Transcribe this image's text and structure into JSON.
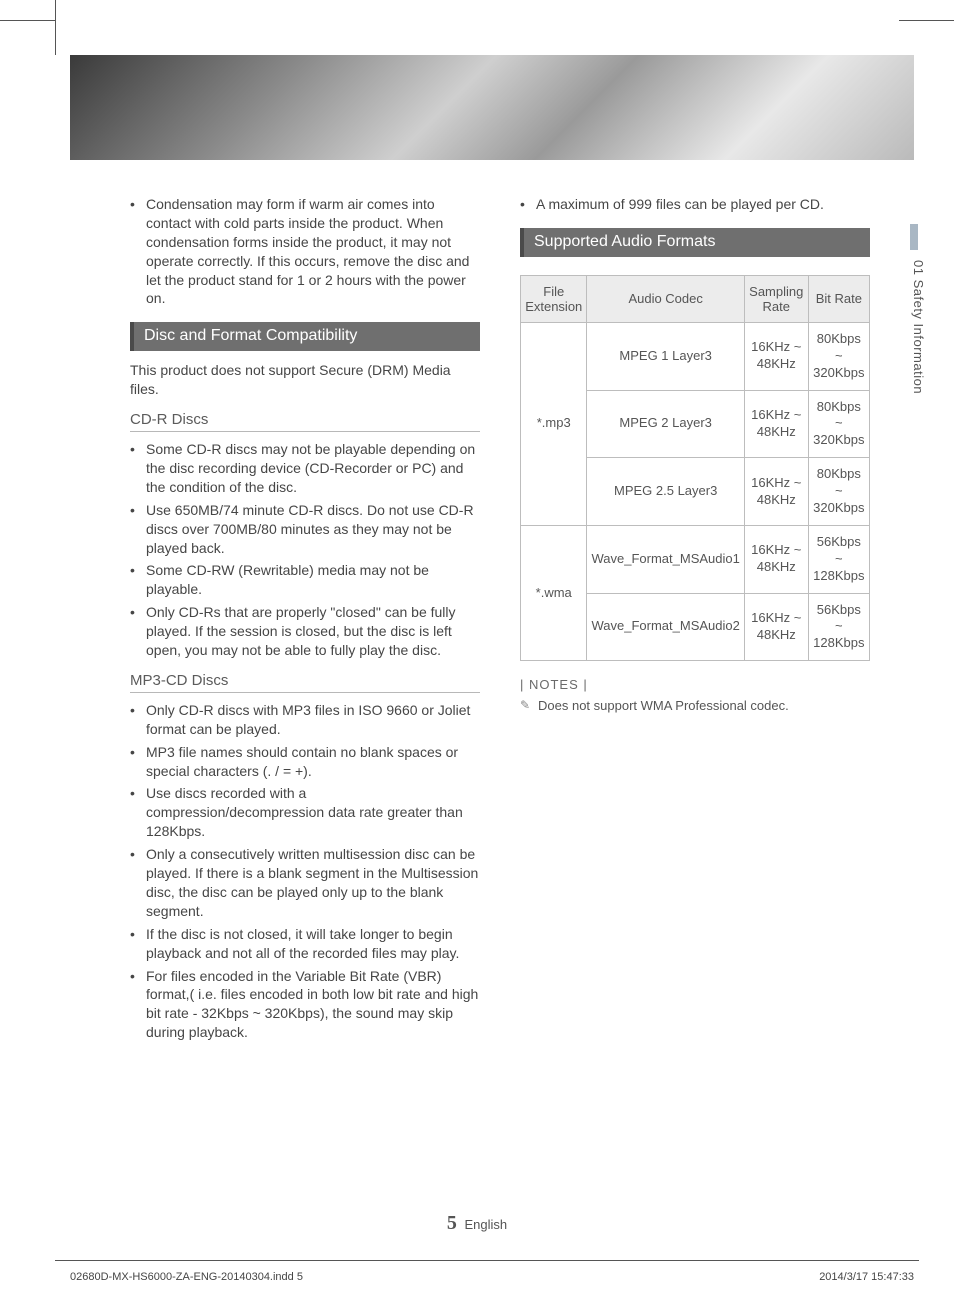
{
  "sidetab": "01   Safety Information",
  "left": {
    "intro_bullet": "Condensation may form if warm air comes into contact with cold parts inside the product. When condensation forms inside the product, it may not operate correctly. If this occurs, remove the disc and let the product stand for 1 or 2 hours with the power on.",
    "section1_title": "Disc and Format Compatibility",
    "section1_intro": "This product does not support Secure (DRM) Media files.",
    "sub1_title": "CD-R Discs",
    "sub1_items": [
      "Some CD-R discs may not be playable depending on the disc recording device (CD-Recorder or PC) and the condition of the disc.",
      "Use 650MB/74 minute CD-R discs. Do not use CD-R discs over 700MB/80 minutes as they may not be played back.",
      "Some CD-RW (Rewritable) media may not be playable.",
      "Only CD-Rs that are properly \"closed\" can be fully played. If the session is closed, but the disc is left open, you may not be able to fully play the disc."
    ],
    "sub2_title": "MP3-CD Discs",
    "sub2_items": [
      "Only CD-R discs with MP3 files in ISO 9660 or Joliet format can be played.",
      "MP3 file names should contain no blank spaces or special characters (. / = +).",
      "Use discs recorded with a compression/decompression data rate greater than 128Kbps.",
      "Only a consecutively written multisession disc can be played. If there is a blank segment in the Multisession disc, the disc can be played only up to the blank segment.",
      "If the disc is not closed, it will take longer to begin playback and not all of the recorded files may play.",
      "For files encoded in the Variable Bit Rate (VBR) format,( i.e. files encoded in both low bit rate and high bit rate - 32Kbps ~ 320Kbps), the sound may skip during playback."
    ]
  },
  "right": {
    "top_bullet": "A maximum of 999 files can be played per CD.",
    "section_title": "Supported Audio Formats",
    "table": {
      "headers": [
        "File Extension",
        "Audio Codec",
        "Sampling Rate",
        "Bit Rate"
      ],
      "groups": [
        {
          "ext": "*.mp3",
          "rows": [
            [
              "MPEG 1 Layer3",
              "16KHz ~ 48KHz",
              "80Kbps ~ 320Kbps"
            ],
            [
              "MPEG 2 Layer3",
              "16KHz ~ 48KHz",
              "80Kbps ~ 320Kbps"
            ],
            [
              "MPEG 2.5 Layer3",
              "16KHz ~ 48KHz",
              "80Kbps ~ 320Kbps"
            ]
          ]
        },
        {
          "ext": "*.wma",
          "rows": [
            [
              "Wave_Format_MSAudio1",
              "16KHz ~ 48KHz",
              "56Kbps ~ 128Kbps"
            ],
            [
              "Wave_Format_MSAudio2",
              "16KHz ~ 48KHz",
              "56Kbps ~ 128Kbps"
            ]
          ]
        }
      ]
    },
    "notes_label": "| NOTES |",
    "note": "Does not support WMA Professional codec."
  },
  "footer": {
    "page_num": "5",
    "lang": "English"
  },
  "printfoot": {
    "left": "02680D-MX-HS6000-ZA-ENG-20140304.indd   5",
    "right": "2014/3/17   15:47:33"
  }
}
